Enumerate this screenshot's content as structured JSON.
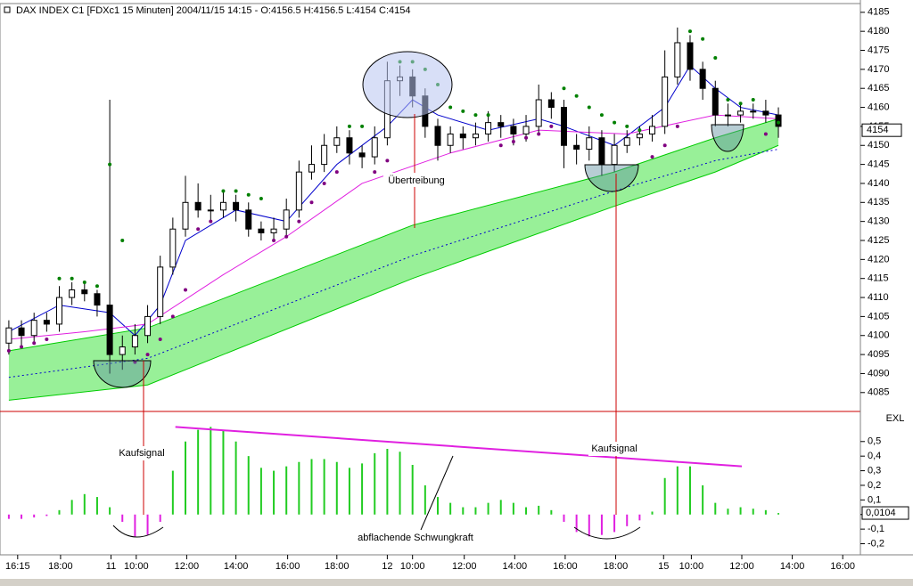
{
  "chart_data": [
    {
      "type": "candlestick",
      "title": "DAX INDEX C1 [FDXc1  15 Minuten] 2004/11/15 14:15 - O:4156.5 H:4156.5 L:4154 C:4154",
      "xlim": [
        -0.7,
        67.5
      ],
      "ylim": [
        4080.5,
        4187.3
      ],
      "yticks": [
        4085,
        4090,
        4095,
        4100,
        4105,
        4110,
        4115,
        4120,
        4125,
        4130,
        4135,
        4140,
        4145,
        4150,
        4155,
        4160,
        4165,
        4170,
        4175,
        4180,
        4185
      ],
      "last_price": 4154,
      "candles": [
        [
          4098,
          4104,
          4095,
          4102
        ],
        [
          4102,
          4104,
          4097,
          4100
        ],
        [
          4100,
          4106,
          4098,
          4104
        ],
        [
          4104,
          4106,
          4101,
          4103
        ],
        [
          4103,
          4113,
          4101,
          4110
        ],
        [
          4110,
          4114,
          4108,
          4112
        ],
        [
          4112,
          4114,
          4109,
          4111
        ],
        [
          4111,
          4112,
          4105,
          4108
        ],
        [
          4108,
          4162,
          4090,
          4095
        ],
        [
          4095,
          4100,
          4091,
          4097
        ],
        [
          4097,
          4103,
          4095,
          4100
        ],
        [
          4100,
          4108,
          4098,
          4105
        ],
        [
          4105,
          4121,
          4103,
          4118
        ],
        [
          4118,
          4131,
          4116,
          4128
        ],
        [
          4128,
          4142,
          4126,
          4135
        ],
        [
          4135,
          4140,
          4131,
          4133
        ],
        [
          4133,
          4137,
          4130,
          4133
        ],
        [
          4133,
          4138,
          4131,
          4135
        ],
        [
          4135,
          4137,
          4130,
          4133
        ],
        [
          4133,
          4135,
          4126,
          4128
        ],
        [
          4128,
          4130,
          4125,
          4127
        ],
        [
          4127,
          4131,
          4125,
          4128
        ],
        [
          4128,
          4136,
          4126,
          4133
        ],
        [
          4133,
          4146,
          4131,
          4143
        ],
        [
          4143,
          4150,
          4141,
          4145
        ],
        [
          4145,
          4153,
          4143,
          4150
        ],
        [
          4150,
          4155,
          4148,
          4152
        ],
        [
          4152,
          4154,
          4145,
          4148
        ],
        [
          4148,
          4150,
          4144,
          4147
        ],
        [
          4147,
          4155,
          4145,
          4152
        ],
        [
          4152,
          4172,
          4150,
          4167
        ],
        [
          4167,
          4171,
          4163,
          4168
        ],
        [
          4168,
          4170,
          4160,
          4163
        ],
        [
          4163,
          4165,
          4152,
          4155
        ],
        [
          4155,
          4157,
          4146,
          4150
        ],
        [
          4150,
          4155,
          4148,
          4153
        ],
        [
          4153,
          4155,
          4149,
          4152
        ],
        [
          4152,
          4156,
          4150,
          4153
        ],
        [
          4153,
          4159,
          4151,
          4156
        ],
        [
          4156,
          4158,
          4152,
          4155
        ],
        [
          4155,
          4157,
          4150,
          4153
        ],
        [
          4153,
          4158,
          4151,
          4155
        ],
        [
          4155,
          4166,
          4153,
          4162
        ],
        [
          4162,
          4164,
          4157,
          4160
        ],
        [
          4160,
          4162,
          4144,
          4150
        ],
        [
          4150,
          4153,
          4145,
          4149
        ],
        [
          4149,
          4155,
          4146,
          4152
        ],
        [
          4152,
          4154,
          4142,
          4145
        ],
        [
          4145,
          4153,
          4143,
          4150
        ],
        [
          4150,
          4154,
          4148,
          4152
        ],
        [
          4152,
          4155,
          4150,
          4153
        ],
        [
          4153,
          4158,
          4151,
          4155
        ],
        [
          4155,
          4175,
          4153,
          4168
        ],
        [
          4168,
          4181,
          4166,
          4177
        ],
        [
          4177,
          4179,
          4167,
          4170
        ],
        [
          4170,
          4172,
          4162,
          4165
        ],
        [
          4165,
          4167,
          4155,
          4158
        ],
        [
          4158,
          4161,
          4155,
          4158
        ],
        [
          4158,
          4161,
          4156,
          4159
        ],
        [
          4159,
          4161,
          4157,
          4159
        ],
        [
          4159,
          4162,
          4156,
          4158
        ],
        [
          4158,
          4160,
          4152,
          4155
        ]
      ],
      "sar": [
        4096,
        4097,
        4098,
        4099,
        4115,
        4115,
        4114,
        4113,
        4145,
        4125,
        4093,
        4095,
        4099,
        4105,
        4112,
        4128,
        4130,
        4138,
        4138,
        4137,
        4136,
        4125,
        4126,
        4130,
        4135,
        4140,
        4143,
        4155,
        4155,
        4143,
        4146,
        4172,
        4172,
        4170,
        4166,
        4160,
        4159,
        4158,
        4158,
        4150,
        4151,
        4152,
        4153,
        4155,
        4165,
        4163,
        4160,
        4158,
        4156,
        4155,
        4154,
        4147,
        4150,
        4155,
        4180,
        4178,
        4173,
        4162,
        4161,
        4162,
        4153,
        4156
      ],
      "sar_above_color": "#008000",
      "sar_below_color": "#800080",
      "band_x": [
        0,
        11,
        32,
        48,
        56,
        61
      ],
      "band_upper": [
        4096,
        4102,
        4129,
        4143,
        4152,
        4157
      ],
      "band_middle": [
        4089,
        4094,
        4121,
        4138,
        4146,
        4149
      ],
      "band_lower": [
        4083,
        4087,
        4115,
        4134,
        4143,
        4150
      ],
      "band_color": "#00cc00",
      "band_fill": "#98f098",
      "band_middle_color": "#0000cc",
      "lines": [
        {
          "color": "#0000cc",
          "x": [
            0,
            4,
            8,
            10,
            12,
            14,
            18,
            22,
            26,
            30,
            32,
            34,
            38,
            42,
            44,
            48,
            52,
            54,
            56,
            58,
            61
          ],
          "values": [
            4101,
            4108,
            4106,
            4100,
            4108,
            4125,
            4133,
            4130,
            4145,
            4155,
            4162,
            4158,
            4154,
            4157,
            4155,
            4150,
            4160,
            4171,
            4165,
            4160,
            4158
          ]
        },
        {
          "color": "#e020e0",
          "x": [
            0,
            6,
            11,
            17,
            22,
            28,
            35,
            42,
            49,
            56,
            61
          ],
          "values": [
            4099,
            4101,
            4103,
            4116,
            4126,
            4140,
            4148,
            4154,
            4153,
            4158,
            4157
          ]
        }
      ]
    },
    {
      "type": "histogram",
      "indicator": "EXL",
      "last_value": {
        "value": 0.0104,
        "label": "0,0104"
      },
      "xlim": [
        -0.7,
        67.5
      ],
      "ylim": [
        -0.27,
        0.7
      ],
      "yticks": [
        {
          "value": 0.5,
          "label": "0,5"
        },
        {
          "value": 0.4,
          "label": "0,4"
        },
        {
          "value": 0.3,
          "label": "0,3"
        },
        {
          "value": 0.2,
          "label": "0,2"
        },
        {
          "value": 0.1,
          "label": "0,1"
        },
        0,
        {
          "value": -0.1,
          "label": "-0,1"
        },
        {
          "value": -0.2,
          "label": "-0,2"
        }
      ],
      "xticks": [
        {
          "value": 0.7,
          "label": "16:15"
        },
        {
          "value": 4.1,
          "label": "18:00"
        },
        {
          "value": 8.1,
          "label": "11"
        },
        {
          "value": 10.1,
          "label": "10:00"
        },
        {
          "value": 14.1,
          "label": "12:00"
        },
        {
          "value": 18,
          "label": "14:00"
        },
        {
          "value": 22.1,
          "label": "16:00"
        },
        {
          "value": 26,
          "label": "18:00"
        },
        {
          "value": 30,
          "label": "12"
        },
        {
          "value": 32,
          "label": "10:00"
        },
        {
          "value": 36.1,
          "label": "12:00"
        },
        {
          "value": 40.1,
          "label": "14:00"
        },
        {
          "value": 44.1,
          "label": "16:00"
        },
        {
          "value": 48.1,
          "label": "18:00"
        },
        {
          "value": 51.9,
          "label": "15"
        },
        {
          "value": 54.1,
          "label": "10:00"
        },
        {
          "value": 58.1,
          "label": "12:00"
        },
        {
          "value": 62.1,
          "label": "14:00"
        },
        {
          "value": 66.1,
          "label": "16:00"
        }
      ],
      "values": [
        -0.03,
        -0.03,
        -0.02,
        -0.01,
        0.03,
        0.1,
        0.14,
        0.12,
        0.05,
        -0.05,
        -0.15,
        -0.14,
        -0.05,
        0.3,
        0.5,
        0.58,
        0.6,
        0.58,
        0.5,
        0.4,
        0.32,
        0.3,
        0.33,
        0.36,
        0.38,
        0.38,
        0.36,
        0.32,
        0.35,
        0.42,
        0.45,
        0.43,
        0.34,
        0.2,
        0.12,
        0.08,
        0.05,
        0.05,
        0.08,
        0.1,
        0.08,
        0.05,
        0.06,
        0.03,
        -0.05,
        -0.12,
        -0.15,
        -0.14,
        -0.12,
        -0.08,
        -0.04,
        0.02,
        0.25,
        0.33,
        0.33,
        0.2,
        0.08,
        0.04,
        0.05,
        0.04,
        0.03,
        0.01
      ],
      "positive_color": "#22cc22",
      "negative_color": "#e020e0",
      "trend_x": [
        13.2,
        58.1
      ],
      "trend_values": [
        0.6,
        0.33
      ],
      "trend_color": "#e020e0",
      "annotations": [
        "Übertreibung",
        "Kaufsignal",
        "Kaufsignal",
        "abflachende Schwungkraft"
      ]
    }
  ]
}
